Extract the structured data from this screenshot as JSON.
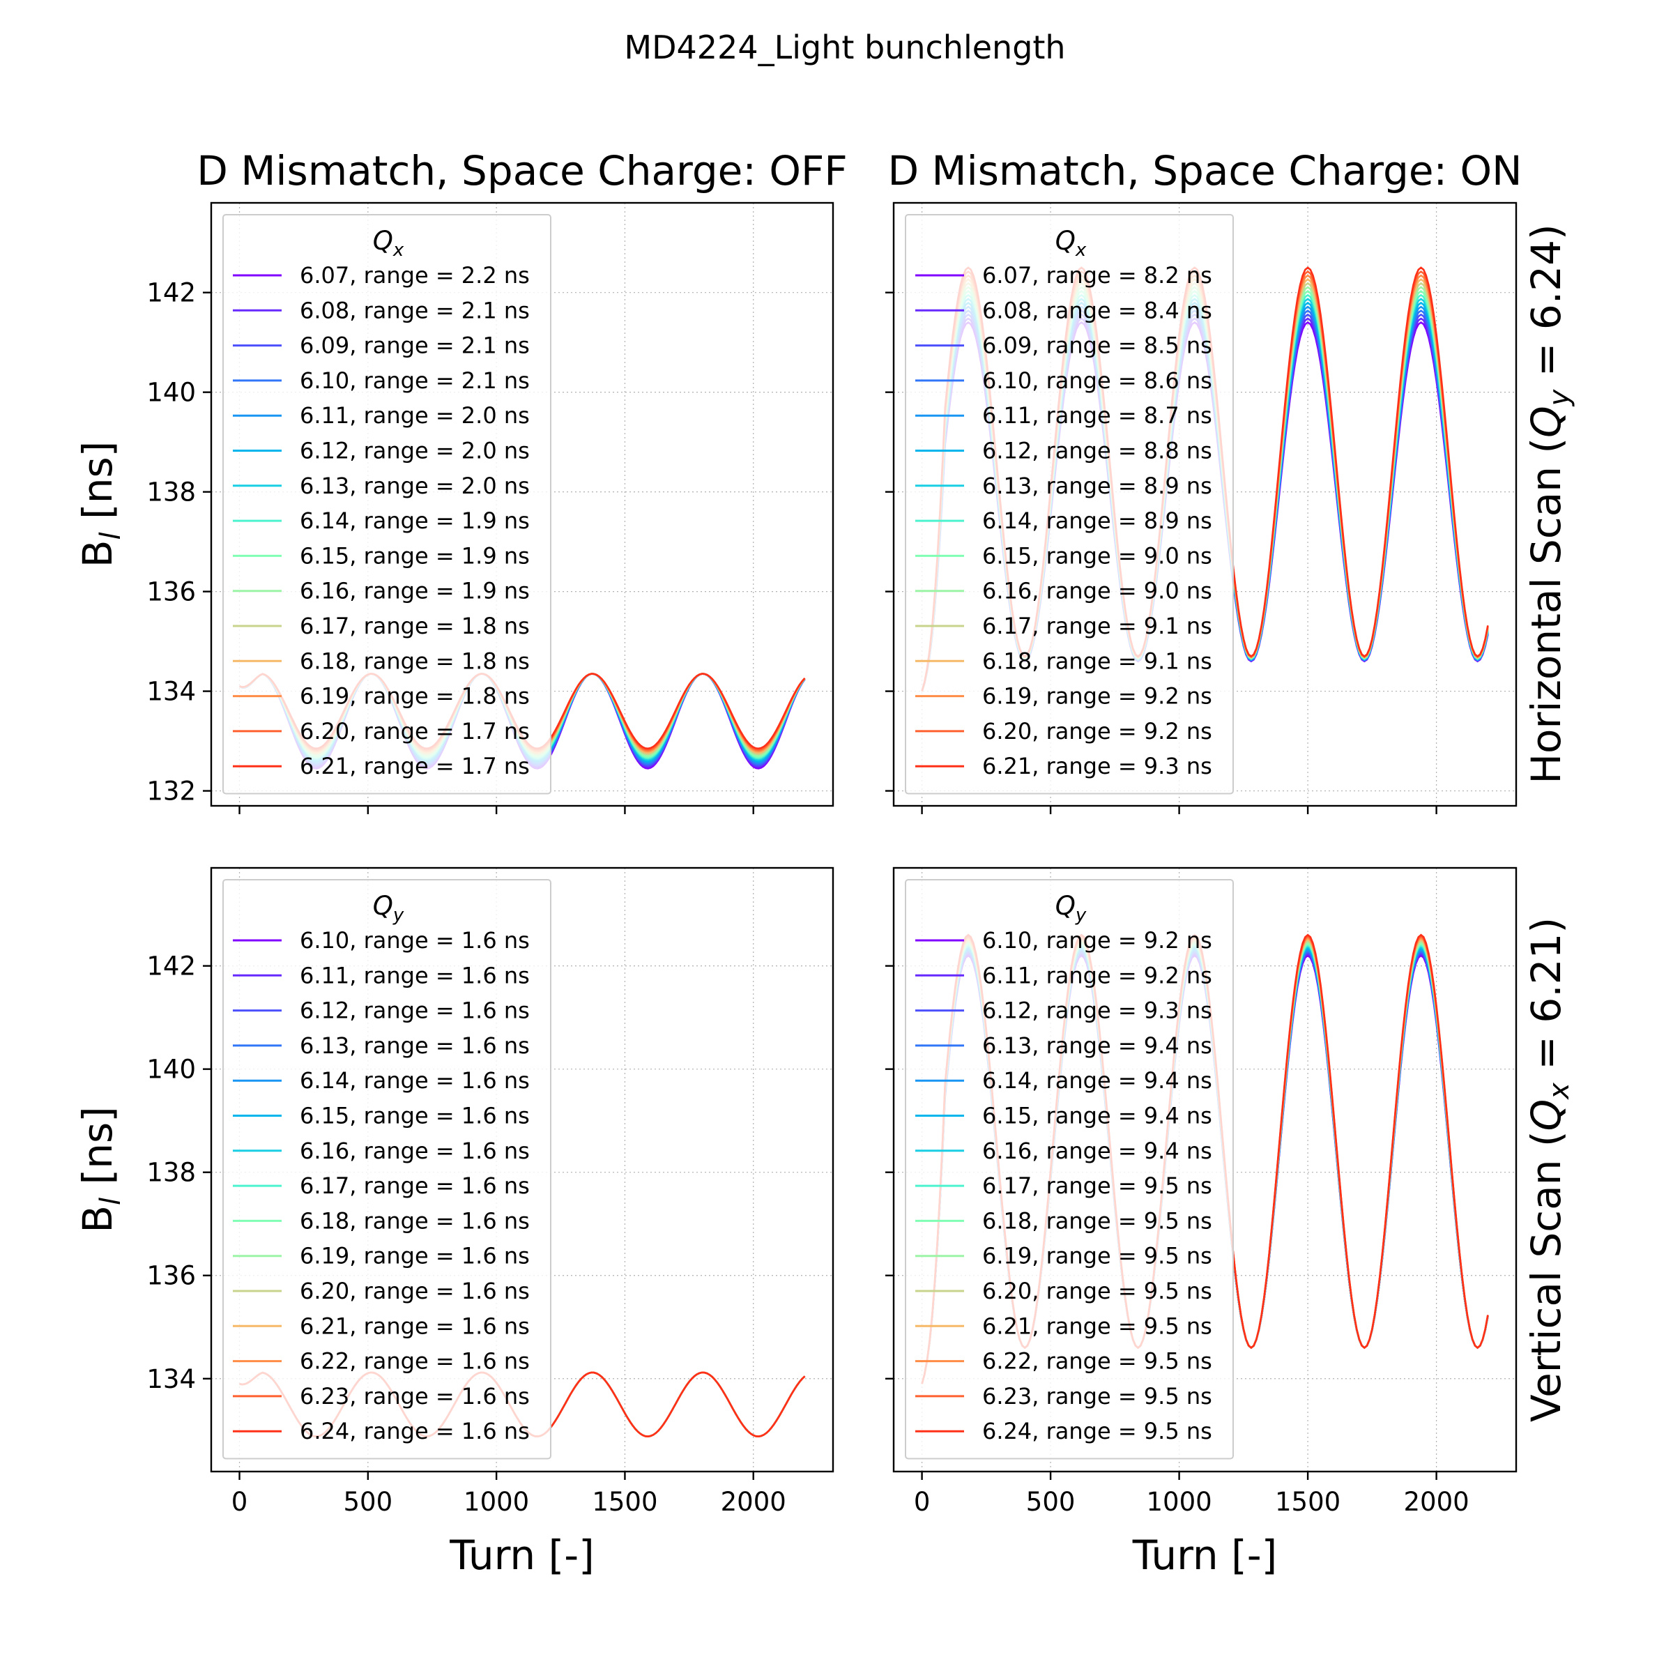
{
  "suptitle": "MD4224_Light bunchlength",
  "row_labels": {
    "top_prefix": "Horizontal Scan (",
    "top_var": "Q",
    "top_sub": "y",
    "top_suffix": " = 6.24)",
    "bottom_prefix": "Vertical Scan (",
    "bottom_var": "Q",
    "bottom_sub": "x",
    "bottom_suffix": " = 6.21)"
  },
  "colors": [
    "#8000ff",
    "#6629fe",
    "#4c50fc",
    "#3176f8",
    "#1996f3",
    "#00b5eb",
    "#1acee3",
    "#4df3ce",
    "#80ffb4",
    "#9cf4a6",
    "#c8d48c",
    "#f6b968",
    "#ff8d48",
    "#ff6030",
    "#ff3018",
    "#ff0000"
  ],
  "chart_data": [
    {
      "type": "line",
      "title": "D Mismatch, Space Charge: OFF",
      "xlabel": "Turn [-]",
      "ylabel": "B",
      "ylabel_sub": "l",
      "ylabel_unit": " [ns]",
      "xlim": [
        -110,
        2310
      ],
      "ylim": [
        131.7,
        143.8
      ],
      "xticks": [
        0,
        500,
        1000,
        1500,
        2000
      ],
      "yticks": [
        132,
        134,
        136,
        138,
        140,
        142
      ],
      "grid": true,
      "legend_title_var": "Q",
      "legend_title_sub": "x",
      "legend_location": "upper left",
      "waveform": {
        "x_end": 2200,
        "offset_first": 133.4,
        "offset_last": 133.6,
        "amp_first": 0.95,
        "amp_last": 0.75,
        "phase": 0.35,
        "period": 430,
        "start": 134.1
      },
      "series": [
        {
          "label": "6.07, range = 2.2 ns"
        },
        {
          "label": "6.08, range = 2.1 ns"
        },
        {
          "label": "6.09, range = 2.1 ns"
        },
        {
          "label": "6.10, range = 2.1 ns"
        },
        {
          "label": "6.11, range = 2.0 ns"
        },
        {
          "label": "6.12, range = 2.0 ns"
        },
        {
          "label": "6.13, range = 2.0 ns"
        },
        {
          "label": "6.14, range = 1.9 ns"
        },
        {
          "label": "6.15, range = 1.9 ns"
        },
        {
          "label": "6.16, range = 1.9 ns"
        },
        {
          "label": "6.17, range = 1.8 ns"
        },
        {
          "label": "6.18, range = 1.8 ns"
        },
        {
          "label": "6.19, range = 1.8 ns"
        },
        {
          "label": "6.20, range = 1.7 ns"
        },
        {
          "label": "6.21, range = 1.7 ns"
        }
      ]
    },
    {
      "type": "line",
      "title": "D Mismatch, Space Charge: ON",
      "xlabel": "Turn [-]",
      "ylabel": "",
      "xlim": [
        -110,
        2310
      ],
      "ylim": [
        131.7,
        143.8
      ],
      "xticks": [
        0,
        500,
        1000,
        1500,
        2000
      ],
      "yticks": [
        132,
        134,
        136,
        138,
        140,
        142
      ],
      "grid": true,
      "legend_title_var": "Q",
      "legend_title_sub": "x",
      "legend_location": "upper left",
      "waveform": {
        "x_end": 2200,
        "offset_first": 138.0,
        "offset_last": 138.6,
        "amp_first": 3.4,
        "amp_last": 3.9,
        "phase": -1.0,
        "period": 440,
        "start": 134.0
      },
      "series": [
        {
          "label": "6.07, range = 8.2 ns"
        },
        {
          "label": "6.08, range = 8.4 ns"
        },
        {
          "label": "6.09, range = 8.5 ns"
        },
        {
          "label": "6.10, range = 8.6 ns"
        },
        {
          "label": "6.11, range = 8.7 ns"
        },
        {
          "label": "6.12, range = 8.8 ns"
        },
        {
          "label": "6.13, range = 8.9 ns"
        },
        {
          "label": "6.14, range = 8.9 ns"
        },
        {
          "label": "6.15, range = 9.0 ns"
        },
        {
          "label": "6.16, range = 9.0 ns"
        },
        {
          "label": "6.17, range = 9.1 ns"
        },
        {
          "label": "6.18, range = 9.1 ns"
        },
        {
          "label": "6.19, range = 9.2 ns"
        },
        {
          "label": "6.20, range = 9.2 ns"
        },
        {
          "label": "6.21, range = 9.3 ns"
        }
      ]
    },
    {
      "type": "line",
      "title": "",
      "xlabel": "Turn [-]",
      "ylabel": "B",
      "ylabel_sub": "l",
      "ylabel_unit": " [ns]",
      "xlim": [
        -110,
        2310
      ],
      "ylim": [
        132.2,
        143.9
      ],
      "xticks": [
        0,
        500,
        1000,
        1500,
        2000
      ],
      "yticks": [
        134,
        136,
        138,
        140,
        142
      ],
      "grid": true,
      "legend_title_var": "Q",
      "legend_title_sub": "y",
      "legend_location": "upper left",
      "waveform": {
        "x_end": 2200,
        "offset_first": 133.5,
        "offset_last": 133.5,
        "amp_first": 0.62,
        "amp_last": 0.62,
        "phase": 0.35,
        "period": 430,
        "start": 133.9
      },
      "series": [
        {
          "label": "6.10, range = 1.6 ns"
        },
        {
          "label": "6.11, range = 1.6 ns"
        },
        {
          "label": "6.12, range = 1.6 ns"
        },
        {
          "label": "6.13, range = 1.6 ns"
        },
        {
          "label": "6.14, range = 1.6 ns"
        },
        {
          "label": "6.15, range = 1.6 ns"
        },
        {
          "label": "6.16, range = 1.6 ns"
        },
        {
          "label": "6.17, range = 1.6 ns"
        },
        {
          "label": "6.18, range = 1.6 ns"
        },
        {
          "label": "6.19, range = 1.6 ns"
        },
        {
          "label": "6.20, range = 1.6 ns"
        },
        {
          "label": "6.21, range = 1.6 ns"
        },
        {
          "label": "6.22, range = 1.6 ns"
        },
        {
          "label": "6.23, range = 1.6 ns"
        },
        {
          "label": "6.24, range = 1.6 ns"
        }
      ]
    },
    {
      "type": "line",
      "title": "",
      "xlabel": "Turn [-]",
      "ylabel": "",
      "xlim": [
        -110,
        2310
      ],
      "ylim": [
        132.2,
        143.9
      ],
      "xticks": [
        0,
        500,
        1000,
        1500,
        2000
      ],
      "yticks": [
        134,
        136,
        138,
        140,
        142
      ],
      "grid": true,
      "legend_title_var": "Q",
      "legend_title_sub": "y",
      "legend_location": "upper left",
      "waveform": {
        "x_end": 2200,
        "offset_first": 138.4,
        "offset_last": 138.6,
        "amp_first": 3.8,
        "amp_last": 4.0,
        "phase": -1.0,
        "period": 440,
        "start": 133.9
      },
      "series": [
        {
          "label": "6.10, range = 9.2 ns"
        },
        {
          "label": "6.11, range = 9.2 ns"
        },
        {
          "label": "6.12, range = 9.3 ns"
        },
        {
          "label": "6.13, range = 9.4 ns"
        },
        {
          "label": "6.14, range = 9.4 ns"
        },
        {
          "label": "6.15, range = 9.4 ns"
        },
        {
          "label": "6.16, range = 9.4 ns"
        },
        {
          "label": "6.17, range = 9.5 ns"
        },
        {
          "label": "6.18, range = 9.5 ns"
        },
        {
          "label": "6.19, range = 9.5 ns"
        },
        {
          "label": "6.20, range = 9.5 ns"
        },
        {
          "label": "6.21, range = 9.5 ns"
        },
        {
          "label": "6.22, range = 9.5 ns"
        },
        {
          "label": "6.23, range = 9.5 ns"
        },
        {
          "label": "6.24, range = 9.5 ns"
        }
      ]
    }
  ]
}
